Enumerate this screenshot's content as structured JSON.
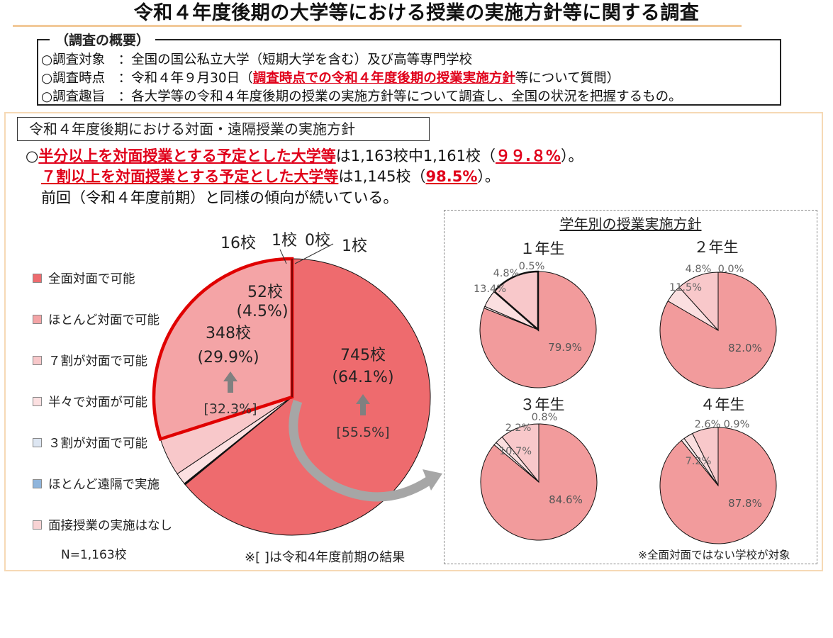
{
  "page": {
    "title": "令和４年度後期の大学等における授業の実施方針等に関する調査",
    "overview_label": "（調査の概要）",
    "overview_lines": [
      {
        "pre": "○調査対象　：全国の国公私立大学（短期大学を含む）及び高等専門学校",
        "red": "",
        "post": ""
      },
      {
        "pre": "○調査時点　：令和４年９月30日（",
        "red": "調査時点での令和４年度後期の授業実施方針",
        "post": "等について質問）"
      },
      {
        "pre": "○調査趣旨　：各大学等の令和４年度後期の授業の実施方針等について調査し、全国の状況を把握するもの。",
        "red": "",
        "post": ""
      }
    ],
    "section_title": "令和４年度後期における対面・遠隔授業の実施方針",
    "statement1": {
      "pre": "○",
      "red1": "半分以上を対面授業とする予定とした大学等",
      "mid": "は1,163校中1,161校（",
      "red2": "９９.８%",
      "post": "）。"
    },
    "statement2": {
      "red1": "７割以上を対面授業とする予定とした大学等",
      "mid": "は1,145校（",
      "red2": "98.5%",
      "post": "）。"
    },
    "statement3": "前回（令和４年度前期）と同様の傾向が続いている。",
    "legend": [
      {
        "label": "全面対面で可能",
        "color": "#ee6b6e"
      },
      {
        "label": "ほとんど対面で可能",
        "color": "#f4a4a6"
      },
      {
        "label": "７割が対面で可能",
        "color": "#f8c8ca"
      },
      {
        "label": "半々で対面が可能",
        "color": "#fce0e1"
      },
      {
        "label": "３割が対面で可能",
        "color": "#dde6f2"
      },
      {
        "label": "ほとんど遠隔で実施",
        "color": "#8fb5dc"
      },
      {
        "label": "面接授業の実施はなし",
        "color": "#f8d3d4"
      }
    ],
    "n_label": "N=1,163校",
    "bracket_note": "※[ ]は令和4年度前期の結果",
    "year_section_title": "学年別の授業実施方針",
    "year_note": "※全面対面ではない学校が対象"
  },
  "chart_data": [
    {
      "type": "pie",
      "title": "",
      "categories": [
        "全面対面で可能",
        "ほとんど対面で可能",
        "７割が対面で可能",
        "半々で対面が可能",
        "３割が対面で可能",
        "ほとんど遠隔で実施",
        "面接授業の実施はなし"
      ],
      "values": [
        745,
        348,
        52,
        16,
        1,
        0,
        1
      ],
      "percent_labels": [
        "(64.1%)",
        "(29.9%)",
        "(4.5%)",
        "",
        "",
        "",
        ""
      ],
      "count_labels": [
        "745校",
        "348校",
        "52校",
        "16校",
        "1校",
        "0校",
        "1校"
      ],
      "previous_labels": [
        "[55.5%]",
        "[32.3%]"
      ],
      "colors": [
        "#ee6b6e",
        "#f4a4a6",
        "#f8c8ca",
        "#fce0e1",
        "#dde6f2",
        "#8fb5dc",
        "#f8d3d4"
      ]
    },
    {
      "type": "pie",
      "title": "１年生",
      "values": [
        79.9,
        13.4,
        4.8,
        0.5
      ],
      "labels": [
        "79.9%",
        "13.4%",
        "4.8%",
        "0.5%"
      ],
      "colors": [
        "#f29b9c",
        "#f8c8ca",
        "#fbdfe0",
        "#fdeeee"
      ]
    },
    {
      "type": "pie",
      "title": "２年生",
      "values": [
        82.0,
        11.5,
        4.8,
        0.0
      ],
      "labels": [
        "82.0%",
        "11.5%",
        "4.8%",
        "0.0%"
      ],
      "colors": [
        "#f29b9c",
        "#f8c8ca",
        "#fbdfe0",
        "#fdeeee"
      ]
    },
    {
      "type": "pie",
      "title": "３年生",
      "values": [
        84.6,
        10.7,
        2.2,
        0.8
      ],
      "labels": [
        "84.6%",
        "10.7%",
        "2.2%",
        "0.8%"
      ],
      "colors": [
        "#f29b9c",
        "#f8c8ca",
        "#fbdfe0",
        "#fdeeee"
      ]
    },
    {
      "type": "pie",
      "title": "４年生",
      "values": [
        87.8,
        7.2,
        2.6,
        0.9
      ],
      "labels": [
        "87.8%",
        "7.2%",
        "2.6%",
        "0.9%"
      ],
      "colors": [
        "#f29b9c",
        "#f8c8ca",
        "#fbdfe0",
        "#fdeeee"
      ]
    }
  ]
}
